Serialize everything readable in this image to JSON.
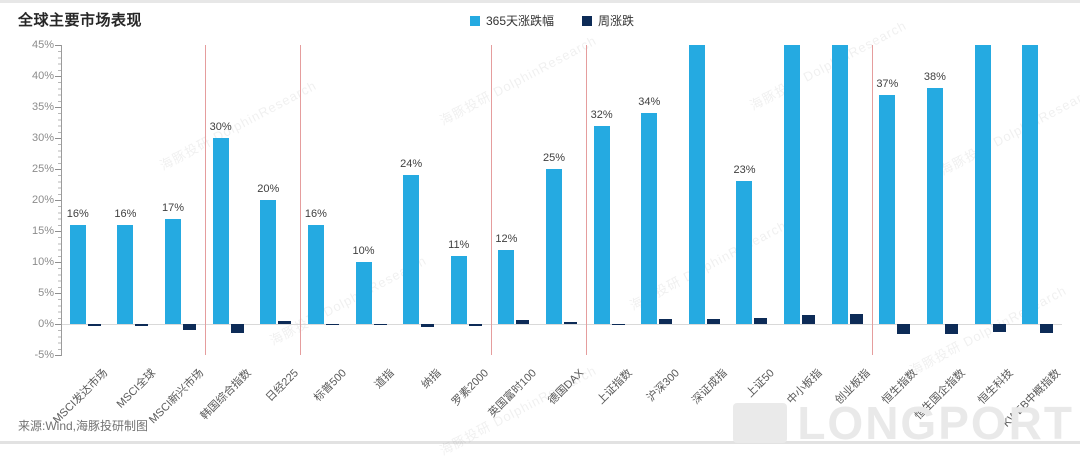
{
  "header": {
    "title": "全球主要市场表现"
  },
  "legend": {
    "items": [
      {
        "label": "365天涨跌幅",
        "color": "#25aae1"
      },
      {
        "label": "周涨跌",
        "color": "#0d2b57"
      }
    ]
  },
  "source": "来源:Wind,海豚投研制图",
  "watermark": {
    "research": "海豚投研 DolphinResearch",
    "brand": "LONGPORT"
  },
  "chart_data": {
    "type": "bar",
    "title": "全球主要市场表现",
    "categories": [
      "MSCI发达市场",
      "MSCI全球",
      "MSCI新兴市场",
      "韩国综合指数",
      "日经225",
      "标普500",
      "道指",
      "纳指",
      "罗素2000",
      "英国富时100",
      "德国DAX",
      "上证指数",
      "沪深300",
      "深证成指",
      "上证50",
      "中小板指",
      "创业板指",
      "恒生指数",
      "恒生国企指数",
      "恒生科技",
      "KWEB中概指数"
    ],
    "series": [
      {
        "name": "365天涨跌幅",
        "color": "#25aae1",
        "values": [
          16,
          16,
          17,
          30,
          20,
          16,
          10,
          24,
          11,
          12,
          25,
          32,
          34,
          45,
          23,
          45,
          45,
          37,
          38,
          45,
          45
        ],
        "labels": [
          "16%",
          "16%",
          "17%",
          "30%",
          "20%",
          "16%",
          "10%",
          "24%",
          "11%",
          "12%",
          "25%",
          "32%",
          "34%",
          "",
          "23%",
          "",
          "",
          "37%",
          "38%",
          "",
          ""
        ]
      },
      {
        "name": "周涨跌",
        "color": "#0d2b57",
        "values": [
          -0.3,
          -0.3,
          -0.9,
          -1.4,
          0.5,
          -0.2,
          -0.1,
          -0.5,
          -0.4,
          0.7,
          0.4,
          -0.1,
          0.8,
          0.8,
          1.0,
          1.5,
          1.6,
          -1.6,
          -1.6,
          -1.3,
          -1.5
        ]
      }
    ],
    "clipped_at_axis_max_indices": [
      13,
      15,
      16,
      19,
      20
    ],
    "ylim": [
      -5,
      45
    ],
    "ytick_step": 5,
    "yticks": [
      "45%",
      "40%",
      "35%",
      "30%",
      "25%",
      "20%",
      "15%",
      "10%",
      "5%",
      "0%",
      "-5%"
    ],
    "grid": "zero-line-only",
    "legend_position": "top-center",
    "separators_after": [
      2,
      4,
      8,
      10,
      16
    ],
    "separator_color": "#e59d9d"
  }
}
